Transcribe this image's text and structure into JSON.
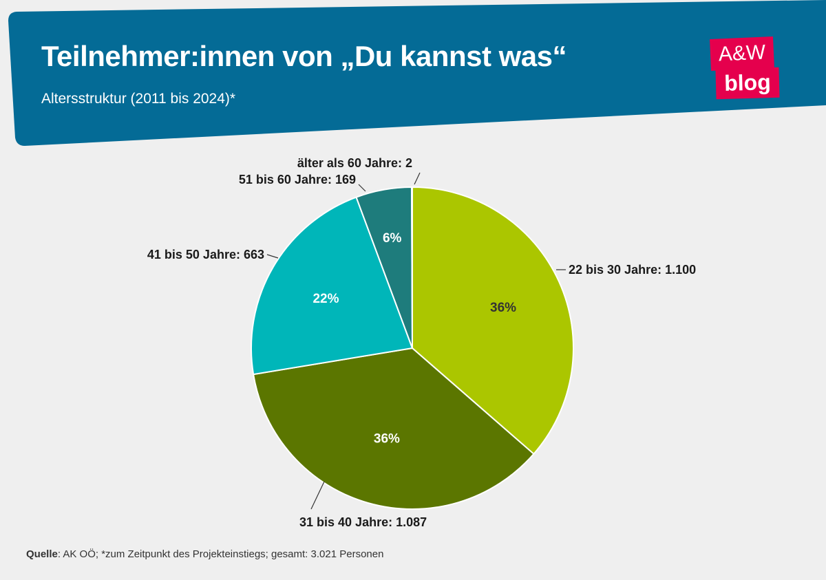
{
  "header": {
    "title": "Teilnehmer:innen von „Du kannst was“",
    "subtitle": "Altersstruktur (2011 bis 2024)*",
    "band_color": "#046b96"
  },
  "logo": {
    "line1": "A&W",
    "line2": "blog",
    "color": "#e5004d"
  },
  "chart_data": {
    "type": "pie",
    "title": "Teilnehmer:innen von „Du kannst was“",
    "subtitle": "Altersstruktur (2011 bis 2024)*",
    "slices": [
      {
        "label": "22 bis 30 Jahre: 1.100",
        "value": 1100,
        "percent_label": "36%",
        "color": "#abc600",
        "text_color": "#333333"
      },
      {
        "label": "31 bis 40 Jahre: 1.087",
        "value": 1087,
        "percent_label": "36%",
        "color": "#5b7600",
        "text_color": "#ffffff"
      },
      {
        "label": "41 bis 50 Jahre: 663",
        "value": 663,
        "percent_label": "22%",
        "color": "#00b6b9",
        "text_color": "#ffffff"
      },
      {
        "label": "51 bis 60 Jahre: 169",
        "value": 169,
        "percent_label": "6%",
        "color": "#1e7c7c",
        "text_color": "#ffffff"
      },
      {
        "label": "älter als 60 Jahre: 2",
        "value": 2,
        "percent_label": "",
        "color": "#1e7c7c",
        "text_color": "#ffffff"
      }
    ],
    "total": 3021
  },
  "footer": {
    "source_label": "Quelle",
    "source_text": ": AK OÖ; *zum Zeitpunkt des Projekteinstiegs; gesamt: 3.021 Personen"
  }
}
